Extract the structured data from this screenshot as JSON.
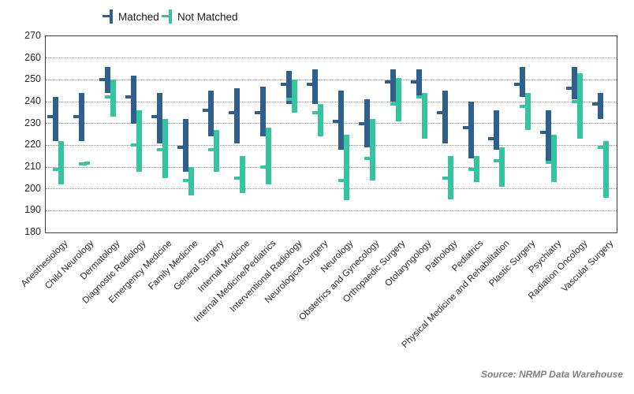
{
  "legend": {
    "matched_label": "Matched",
    "not_matched_label": "Not Matched"
  },
  "source": {
    "text": "Source: NRMP Data Warehouse"
  },
  "colors": {
    "matched": "#2F5F8D",
    "not_matched": "#35C3A0",
    "gridline": "#949494",
    "axis_text": "#262626",
    "source_text": "#808080"
  },
  "chart_data": {
    "type": "bar",
    "subtype": "floating range bars (low-high) with horizontal median tick, grouped pairs per category",
    "title": "",
    "xlabel": "",
    "ylabel": "",
    "ylim": [
      180,
      270
    ],
    "yticks": [
      270,
      260,
      250,
      240,
      230,
      220,
      210,
      200,
      190,
      180
    ],
    "grid": "horizontal dotted gridlines at each y tick",
    "legend_position": "top",
    "categories": [
      "Anesthesiology",
      "Child Neurology",
      "Dermatology",
      "Diagnostic Radiology",
      "Emergency Medicine",
      "Family Medicine",
      "General Surgery",
      "Internal Medicine",
      "Internal Medicine/Pediatrics",
      "Interventional Radiology",
      "Neurological Surgery",
      "Neurology",
      "Obstetrics and Gynecology",
      "Orthopaedic Surgery",
      "Otolaryngology",
      "Pathology",
      "Pediatrics",
      "Physical Medicine and Rehabilitation",
      "Plastic Surgery",
      "Psychiatry",
      "Radiation Oncology",
      "Vascular Surgery"
    ],
    "series": [
      {
        "name": "Matched",
        "color": "#2F5F8D",
        "values": [
          {
            "low": 222,
            "median": 233,
            "high": 242
          },
          {
            "low": 222,
            "median": 233,
            "high": 244
          },
          {
            "low": 244,
            "median": 250,
            "high": 256
          },
          {
            "low": 230,
            "median": 242,
            "high": 252
          },
          {
            "low": 221,
            "median": 233,
            "high": 244
          },
          {
            "low": 208,
            "median": 219,
            "high": 232
          },
          {
            "low": 224,
            "median": 236,
            "high": 245
          },
          {
            "low": 221,
            "median": 235,
            "high": 246
          },
          {
            "low": 224,
            "median": 235,
            "high": 247
          },
          {
            "low": 239,
            "median": 248,
            "high": 254
          },
          {
            "low": 239,
            "median": 248,
            "high": 255
          },
          {
            "low": 218,
            "median": 231,
            "high": 245
          },
          {
            "low": 219,
            "median": 230,
            "high": 241
          },
          {
            "low": 240,
            "median": 249,
            "high": 255
          },
          {
            "low": 242,
            "median": 249,
            "high": 255
          },
          {
            "low": 221,
            "median": 235,
            "high": 245
          },
          {
            "low": 214,
            "median": 228,
            "high": 240
          },
          {
            "low": 218,
            "median": 223,
            "high": 236
          },
          {
            "low": 242,
            "median": 248,
            "high": 256
          },
          {
            "low": 212,
            "median": 226,
            "high": 236
          },
          {
            "low": 241,
            "median": 246,
            "high": 256
          },
          {
            "low": 232,
            "median": 239,
            "high": 244
          }
        ]
      },
      {
        "name": "Not Matched",
        "color": "#35C3A0",
        "values": [
          {
            "low": 202,
            "median": 209,
            "high": 222
          },
          {
            "low": 211,
            "median": 211.5,
            "high": 212.5
          },
          {
            "low": 233,
            "median": 242,
            "high": 250
          },
          {
            "low": 208,
            "median": 220,
            "high": 236
          },
          {
            "low": 205,
            "median": 218,
            "high": 232
          },
          {
            "low": 197,
            "median": 204,
            "high": 210
          },
          {
            "low": 208,
            "median": 218,
            "high": 227
          },
          {
            "low": 198,
            "median": 205,
            "high": 215
          },
          {
            "low": 202,
            "median": 210,
            "high": 228
          },
          {
            "low": 235,
            "median": 241,
            "high": 250
          },
          {
            "low": 224,
            "median": 235,
            "high": 239
          },
          {
            "low": 195,
            "median": 204,
            "high": 225
          },
          {
            "low": 204,
            "median": 214,
            "high": 232
          },
          {
            "low": 231,
            "median": 239,
            "high": 251
          },
          {
            "low": 223,
            "median": 242,
            "high": 244
          },
          {
            "low": 195,
            "median": 205,
            "high": 215
          },
          {
            "low": 203,
            "median": 209,
            "high": 215
          },
          {
            "low": 201,
            "median": 213,
            "high": 219
          },
          {
            "low": 227,
            "median": 238,
            "high": 244
          },
          {
            "low": 203,
            "median": 212,
            "high": 225
          },
          {
            "low": 223,
            "median": 240,
            "high": 253
          },
          {
            "low": 196,
            "median": 219,
            "high": 222
          }
        ]
      }
    ]
  }
}
